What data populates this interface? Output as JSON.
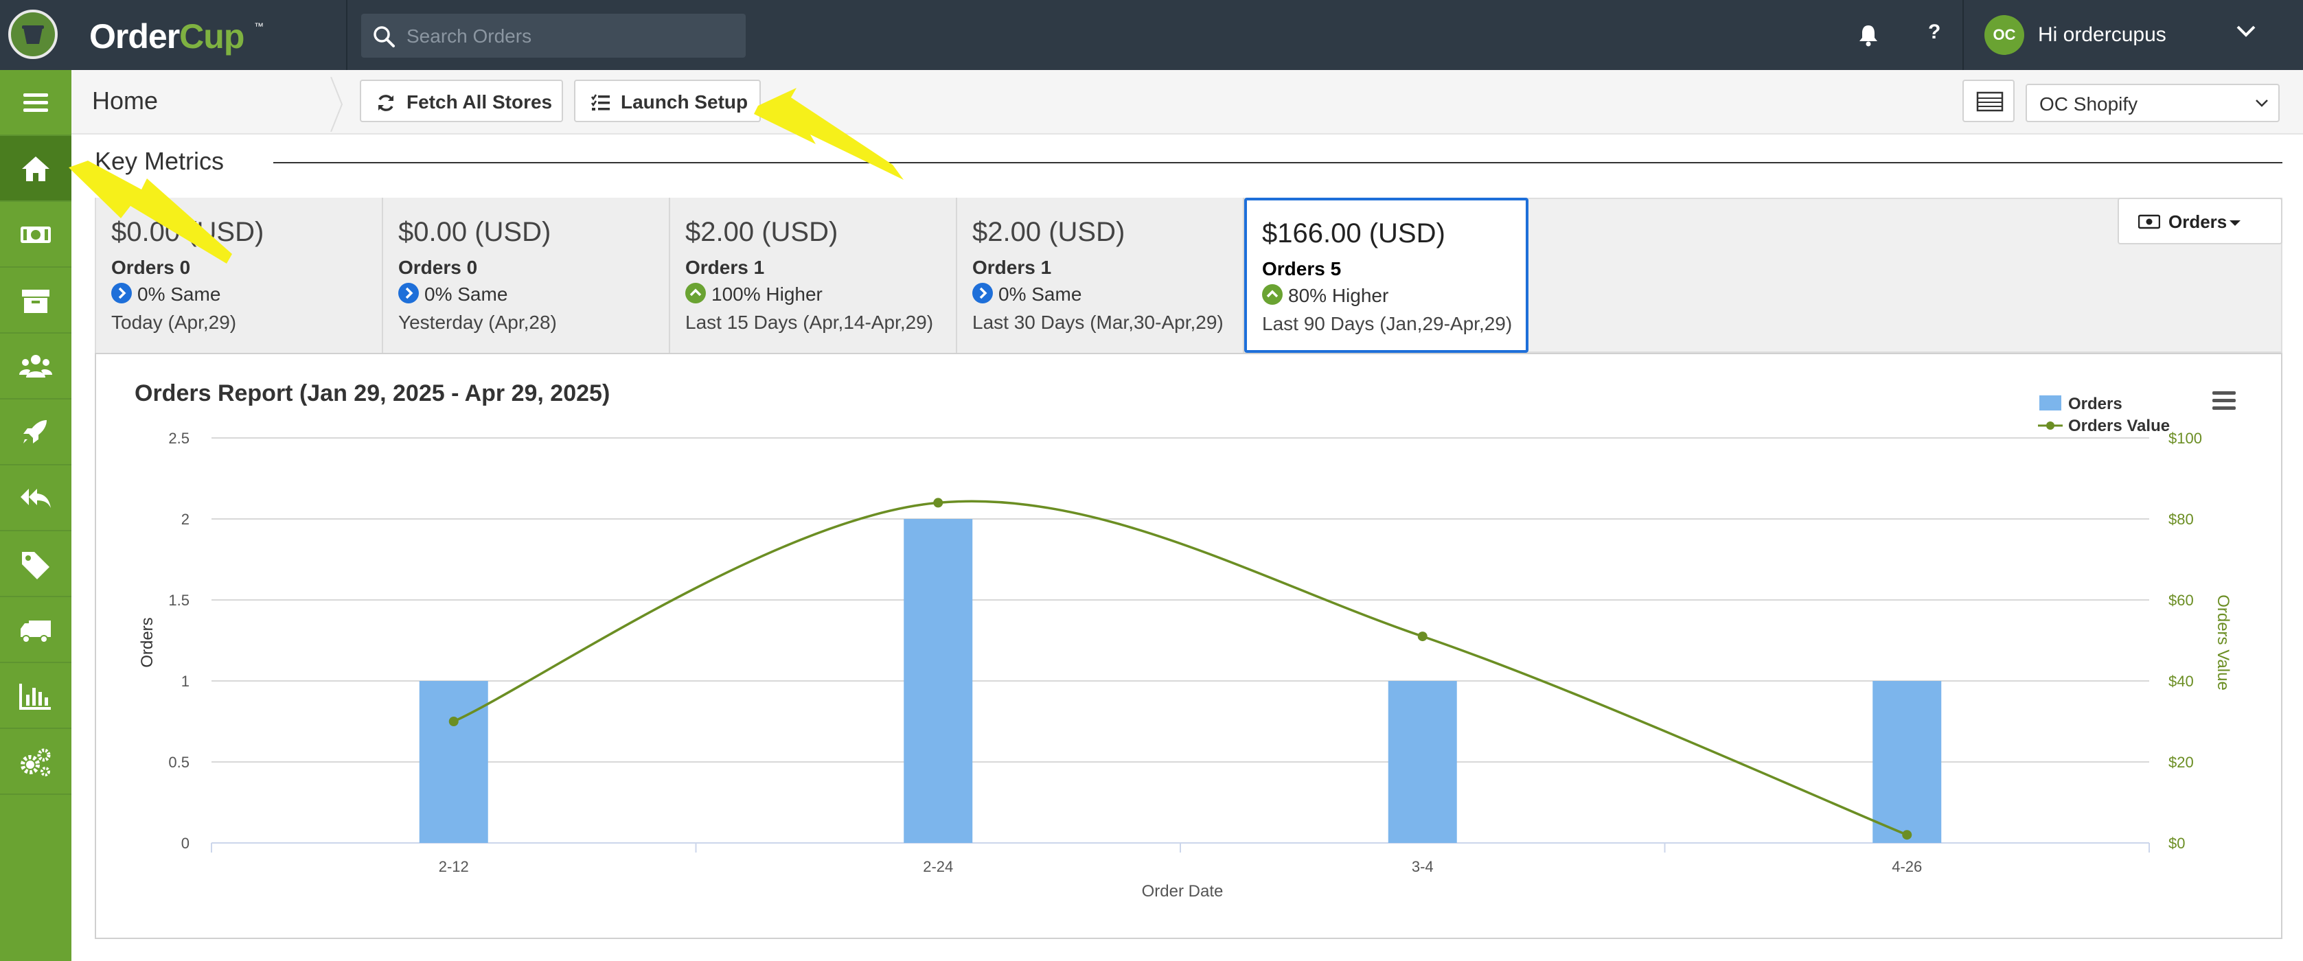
{
  "app": {
    "name_a": "Order",
    "name_b": "Cup",
    "tm": "™"
  },
  "search": {
    "placeholder": "Search Orders"
  },
  "user": {
    "initials": "OC",
    "greeting": "Hi ordercupus"
  },
  "header": {
    "help": "?"
  },
  "sidebar": {
    "items": [
      "menu-icon",
      "home-icon",
      "cash-icon",
      "archive-icon",
      "users-icon",
      "rocket-icon",
      "reply-all-icon",
      "tag-icon",
      "truck-icon",
      "bar-chart-icon",
      "cogs-icon"
    ]
  },
  "toolbar": {
    "page_title": "Home",
    "fetch_label": "Fetch All Stores",
    "setup_label": "Launch Setup",
    "store": "OC Shopify"
  },
  "key_metrics": {
    "title": "Key Metrics",
    "dropdown": "Orders",
    "cards": [
      {
        "amount": "$0.00 (USD)",
        "orders": "Orders 0",
        "change": "0% Same",
        "trend": "same",
        "period": "Today (Apr,29)"
      },
      {
        "amount": "$0.00 (USD)",
        "orders": "Orders 0",
        "change": "0% Same",
        "trend": "same",
        "period": "Yesterday (Apr,28)"
      },
      {
        "amount": "$2.00 (USD)",
        "orders": "Orders 1",
        "change": "100% Higher",
        "trend": "up",
        "period": "Last 15 Days (Apr,14-Apr,29)"
      },
      {
        "amount": "$2.00 (USD)",
        "orders": "Orders 1",
        "change": "0% Same",
        "trend": "same",
        "period": "Last 30 Days (Mar,30-Apr,29)"
      },
      {
        "amount": "$166.00 (USD)",
        "orders": "Orders 5",
        "change": "80% Higher",
        "trend": "up",
        "period": "Last 90 Days (Jan,29-Apr,29)"
      }
    ]
  },
  "colors": {
    "accent": "#6aa332",
    "bar": "#7cb5ec",
    "line": "#6b8e23",
    "active_border": "#1e6fd9"
  },
  "chart_data": {
    "type": "bar",
    "title": "Orders Report (Jan 29, 2025 - Apr 29, 2025)",
    "categories": [
      "2-12",
      "2-24",
      "3-4",
      "4-26"
    ],
    "series": [
      {
        "name": "Orders",
        "type": "bar",
        "axis": "left",
        "values": [
          1,
          2,
          1,
          1
        ]
      },
      {
        "name": "Orders Value",
        "type": "line",
        "axis": "right",
        "values": [
          30,
          84,
          51,
          2
        ]
      }
    ],
    "xlabel": "Order Date",
    "ylabel": "Orders",
    "ylabel_right": "Orders Value",
    "ylim": [
      0,
      2.5
    ],
    "yticks": [
      "0",
      "0.5",
      "1",
      "1.5",
      "2",
      "2.5"
    ],
    "ylim_right": [
      0,
      100
    ],
    "yticks_right": [
      "$0",
      "$20",
      "$40",
      "$60",
      "$80",
      "$100"
    ],
    "grid": true,
    "legend": "top-right"
  }
}
